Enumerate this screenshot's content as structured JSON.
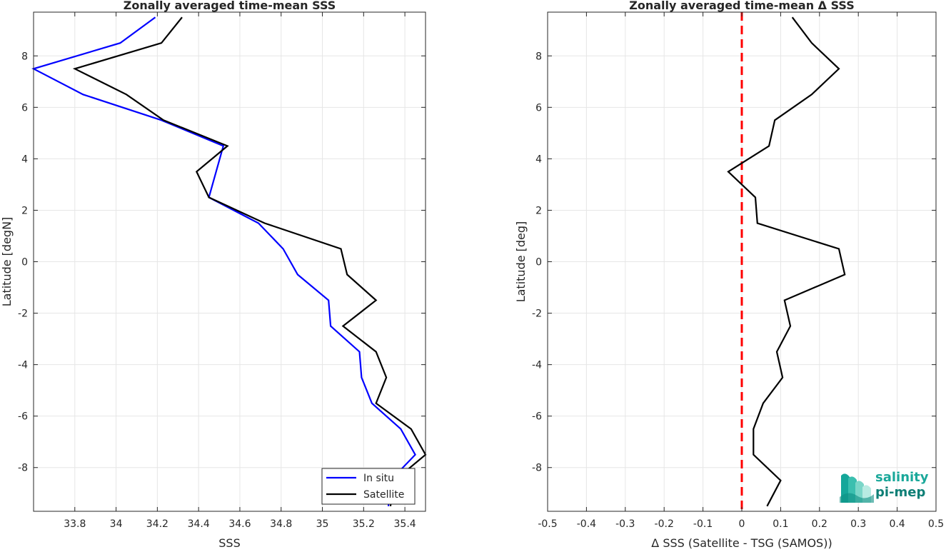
{
  "chart_data": [
    {
      "type": "line",
      "title": "Zonally averaged time-mean SSS",
      "xlabel": "SSS",
      "ylabel": "Latitude [degN]",
      "xlim": [
        33.6,
        35.5
      ],
      "ylim": [
        -9.7,
        9.7
      ],
      "xticks": [
        33.8,
        34,
        34.2,
        34.4,
        34.6,
        34.8,
        35,
        35.2,
        35.4
      ],
      "xtick_labels": [
        "33.8",
        "34",
        "34.2",
        "34.4",
        "34.6",
        "34.8",
        "35",
        "35.2",
        "35.4"
      ],
      "yticks": [
        -8,
        -6,
        -4,
        -2,
        0,
        2,
        4,
        6,
        8
      ],
      "ytick_labels": [
        "-8",
        "-6",
        "-4",
        "-2",
        "0",
        "2",
        "4",
        "6",
        "8"
      ],
      "grid": true,
      "legend_position": "bottom-right",
      "series": [
        {
          "name": "In situ",
          "color": "#0000ff",
          "x": [
            34.19,
            34.02,
            33.6,
            33.84,
            34.22,
            34.52,
            34.45,
            34.69,
            34.81,
            34.88,
            35.03,
            35.04,
            35.18,
            35.19,
            35.24,
            35.38,
            35.45,
            35.33,
            35.32
          ],
          "y": [
            9.5,
            8.5,
            7.5,
            6.5,
            5.5,
            4.5,
            2.5,
            1.5,
            0.5,
            -0.5,
            -1.5,
            -2.5,
            -3.5,
            -4.5,
            -5.5,
            -6.5,
            -7.5,
            -8.5,
            -9.5
          ]
        },
        {
          "name": "Satellite",
          "color": "#000000",
          "x": [
            34.32,
            34.22,
            33.8,
            34.05,
            34.23,
            34.54,
            34.39,
            34.45,
            34.72,
            35.09,
            35.12,
            35.26,
            35.1,
            35.26,
            35.31,
            35.26,
            35.43,
            35.5,
            35.35,
            35.33
          ],
          "y": [
            9.5,
            8.5,
            7.5,
            6.5,
            5.5,
            4.5,
            3.5,
            2.5,
            1.5,
            0.5,
            -0.5,
            -1.5,
            -2.5,
            -3.5,
            -4.5,
            -5.5,
            -6.5,
            -7.5,
            -8.5,
            -9.5
          ]
        }
      ]
    },
    {
      "type": "line",
      "title": "Zonally averaged time-mean Δ SSS",
      "xlabel": "Δ SSS (Satellite - TSG (SAMOS))",
      "ylabel": "Latitude [deg]",
      "xlim": [
        -0.5,
        0.5
      ],
      "ylim": [
        -9.7,
        9.7
      ],
      "xticks": [
        -0.5,
        -0.4,
        -0.3,
        -0.2,
        -0.1,
        0,
        0.1,
        0.2,
        0.3,
        0.4,
        0.5
      ],
      "xtick_labels": [
        "-0.5",
        "-0.4",
        "-0.3",
        "-0.2",
        "-0.1",
        "0",
        "0.1",
        "0.2",
        "0.3",
        "0.4",
        "0.5"
      ],
      "yticks": [
        -8,
        -6,
        -4,
        -2,
        0,
        2,
        4,
        6,
        8
      ],
      "ytick_labels": [
        "-8",
        "-6",
        "-4",
        "-2",
        "0",
        "2",
        "4",
        "6",
        "8"
      ],
      "grid": true,
      "reference_line": {
        "x": 0,
        "color": "#ff0000",
        "style": "dashed"
      },
      "series": [
        {
          "color": "#000000",
          "x": [
            0.13,
            0.18,
            0.25,
            0.18,
            0.085,
            0.07,
            -0.035,
            0.035,
            0.04,
            0.25,
            0.265,
            0.11,
            0.125,
            0.09,
            0.105,
            0.055,
            0.03,
            0.03,
            0.1,
            0.065
          ],
          "y": [
            9.5,
            8.5,
            7.5,
            6.5,
            5.5,
            4.5,
            3.5,
            2.5,
            1.5,
            0.5,
            -0.5,
            -1.5,
            -2.5,
            -3.5,
            -4.5,
            -5.5,
            -6.5,
            -7.5,
            -8.5,
            -9.5
          ]
        }
      ]
    }
  ],
  "logo": {
    "line1": "salinity",
    "line2": "pi-mep"
  }
}
